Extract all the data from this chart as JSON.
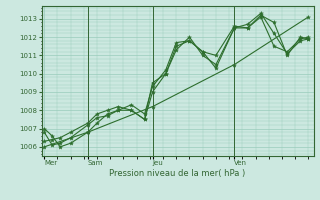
{
  "background_color": "#cce8e0",
  "grid_color": "#99ccbb",
  "line_color": "#2d6e2d",
  "spine_color": "#336633",
  "title": "Pression niveau de la mer( hPa )",
  "ylim": [
    1005.5,
    1013.7
  ],
  "yticks": [
    1006,
    1007,
    1008,
    1009,
    1010,
    1011,
    1012,
    1013
  ],
  "day_labels": [
    "Mer",
    "Sam",
    "Jeu",
    "Ven"
  ],
  "vline_positions": [
    0.165,
    0.41,
    0.72
  ],
  "series1_x": [
    0.0,
    0.03,
    0.06,
    0.1,
    0.165,
    0.2,
    0.24,
    0.28,
    0.33,
    0.38,
    0.41,
    0.46,
    0.5,
    0.55,
    0.6,
    0.65,
    0.72,
    0.77,
    0.82,
    0.87,
    0.92,
    0.97,
    1.0
  ],
  "series1_y": [
    1007.0,
    1006.6,
    1006.0,
    1006.2,
    1006.8,
    1007.3,
    1007.8,
    1008.0,
    1008.3,
    1007.8,
    1009.3,
    1010.2,
    1011.7,
    1011.8,
    1011.2,
    1010.3,
    1012.5,
    1012.7,
    1013.3,
    1012.2,
    1011.1,
    1011.8,
    1011.9
  ],
  "series2_x": [
    0.0,
    0.03,
    0.06,
    0.1,
    0.165,
    0.2,
    0.24,
    0.28,
    0.33,
    0.38,
    0.41,
    0.46,
    0.5,
    0.55,
    0.6,
    0.65,
    0.72,
    0.77,
    0.82,
    0.87,
    0.92,
    0.97,
    1.0
  ],
  "series2_y": [
    1006.8,
    1006.1,
    1006.2,
    1006.5,
    1007.2,
    1007.6,
    1007.7,
    1008.0,
    1008.0,
    1007.5,
    1009.0,
    1010.0,
    1011.5,
    1011.8,
    1011.2,
    1011.0,
    1012.6,
    1012.5,
    1013.1,
    1011.5,
    1011.2,
    1011.9,
    1012.0
  ],
  "series3_x": [
    0.0,
    0.165,
    0.41,
    0.72,
    1.0
  ],
  "series3_y": [
    1006.0,
    1006.8,
    1008.2,
    1010.5,
    1013.1
  ],
  "series4_x": [
    0.0,
    0.03,
    0.06,
    0.1,
    0.165,
    0.2,
    0.24,
    0.28,
    0.33,
    0.38,
    0.41,
    0.46,
    0.5,
    0.55,
    0.6,
    0.65,
    0.72,
    0.77,
    0.82,
    0.87,
    0.92,
    0.97,
    1.0
  ],
  "series4_y": [
    1006.3,
    1006.4,
    1006.5,
    1006.8,
    1007.3,
    1007.8,
    1008.0,
    1008.2,
    1008.0,
    1007.5,
    1009.5,
    1010.0,
    1011.3,
    1012.0,
    1011.0,
    1010.5,
    1012.5,
    1012.5,
    1013.2,
    1012.8,
    1011.0,
    1012.0,
    1011.9
  ]
}
